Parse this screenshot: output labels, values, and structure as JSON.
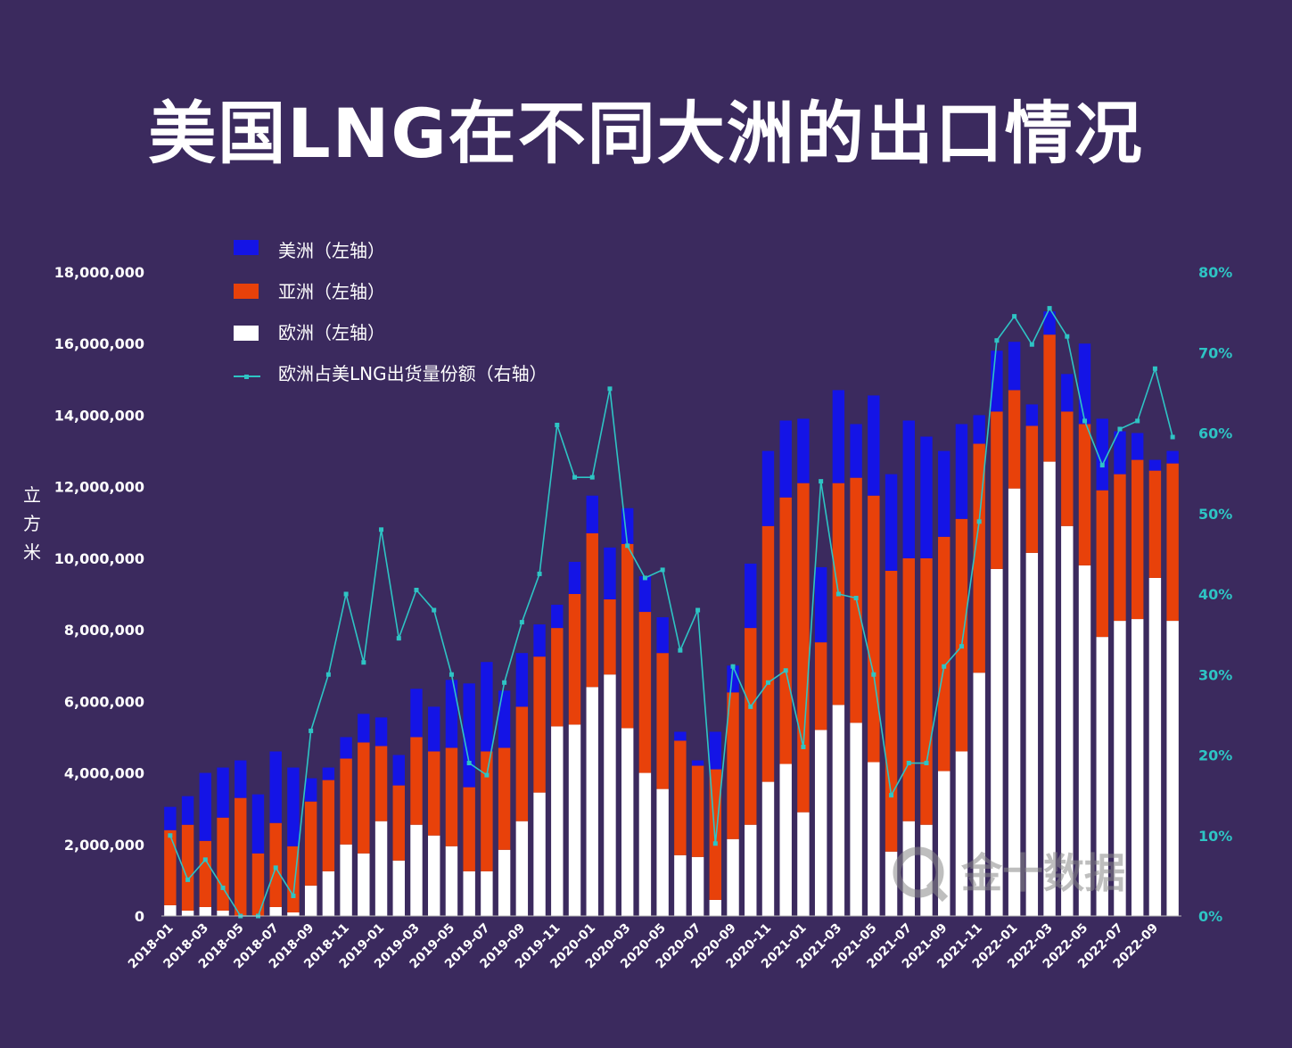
{
  "title": "美国LNG在不同大洲的出口情况",
  "watermark": "金十数据",
  "colors": {
    "background": "#3b2a5e",
    "americas": "#1414e6",
    "asia": "#e8410a",
    "europe": "#ffffff",
    "share_line": "#2ec4c4"
  },
  "chart_data": {
    "type": "bar",
    "stacked": true,
    "ylabel": "立方米",
    "ylim": [
      0,
      18000000
    ],
    "y_ticks": [
      "0",
      "2,000,000",
      "4,000,000",
      "6,000,000",
      "8,000,000",
      "10,000,000",
      "12,000,000",
      "14,000,000",
      "16,000,000",
      "18,000,000"
    ],
    "y2lim": [
      0,
      0.8
    ],
    "y2_ticks": [
      "0%",
      "10%",
      "20%",
      "30%",
      "40%",
      "50%",
      "60%",
      "70%",
      "80%"
    ],
    "x_tick_labels": [
      "2018-01",
      "2018-03",
      "2018-05",
      "2018-07",
      "2018-09",
      "2018-11",
      "2019-01",
      "2019-03",
      "2019-05",
      "2019-07",
      "2019-09",
      "2019-11",
      "2020-01",
      "2020-03",
      "2020-05",
      "2020-07",
      "2020-09",
      "2020-11",
      "2021-01",
      "2021-03",
      "2021-05",
      "2021-07",
      "2021-09",
      "2021-11",
      "2022-01",
      "2022-03",
      "2022-05",
      "2022-07",
      "2022-09"
    ],
    "categories": [
      "2018-01",
      "2018-02",
      "2018-03",
      "2018-04",
      "2018-05",
      "2018-06",
      "2018-07",
      "2018-08",
      "2018-09",
      "2018-10",
      "2018-11",
      "2018-12",
      "2019-01",
      "2019-02",
      "2019-03",
      "2019-04",
      "2019-05",
      "2019-06",
      "2019-07",
      "2019-08",
      "2019-09",
      "2019-10",
      "2019-11",
      "2019-12",
      "2020-01",
      "2020-02",
      "2020-03",
      "2020-04",
      "2020-05",
      "2020-06",
      "2020-07",
      "2020-08",
      "2020-09",
      "2020-10",
      "2020-11",
      "2020-12",
      "2021-01",
      "2021-02",
      "2021-03",
      "2021-04",
      "2021-05",
      "2021-06",
      "2021-07",
      "2021-08",
      "2021-09",
      "2021-10",
      "2021-11",
      "2021-12",
      "2022-01",
      "2022-02",
      "2022-03",
      "2022-04",
      "2022-05",
      "2022-06",
      "2022-07",
      "2022-08",
      "2022-09",
      "2022-10"
    ],
    "legend": [
      "美洲（左轴）",
      "亚洲（左轴）",
      "欧洲（左轴）",
      "欧洲占美LNG出货量份额（右轴）"
    ],
    "legend_placement": "top-left",
    "grid": false,
    "series": [
      {
        "name": "欧洲（左轴）",
        "axis": "left",
        "values": [
          300000,
          150000,
          250000,
          150000,
          0,
          0,
          250000,
          100000,
          850000,
          1250000,
          2000000,
          1750000,
          2650000,
          1550000,
          2550000,
          2250000,
          1950000,
          1250000,
          1250000,
          1850000,
          2650000,
          3450000,
          5300000,
          5350000,
          6400000,
          6750000,
          5250000,
          4000000,
          3550000,
          1700000,
          1650000,
          450000,
          2150000,
          2550000,
          3750000,
          4250000,
          2900000,
          5200000,
          5900000,
          5400000,
          4300000,
          1800000,
          2650000,
          2550000,
          4050000,
          4600000,
          6800000,
          9700000,
          11950000,
          10150000,
          12700000,
          10900000,
          9800000,
          7800000,
          8250000,
          8300000,
          9450000,
          8250000
        ]
      },
      {
        "name": "亚洲（左轴）",
        "axis": "left",
        "values": [
          2100000,
          2400000,
          1850000,
          2600000,
          3300000,
          1750000,
          2350000,
          1850000,
          2350000,
          2550000,
          2400000,
          3100000,
          2100000,
          2100000,
          2450000,
          2350000,
          2750000,
          2350000,
          3350000,
          2850000,
          3200000,
          3800000,
          2750000,
          3650000,
          4300000,
          2100000,
          5150000,
          4500000,
          3800000,
          3200000,
          2550000,
          3650000,
          4100000,
          5500000,
          7150000,
          7450000,
          9200000,
          2450000,
          6200000,
          6850000,
          7450000,
          7850000,
          7350000,
          7450000,
          6550000,
          6500000,
          6400000,
          4400000,
          2750000,
          3550000,
          3550000,
          3200000,
          3950000,
          4100000,
          4100000,
          4450000,
          3000000,
          4400000
        ]
      },
      {
        "name": "美洲（左轴）",
        "axis": "left",
        "values": [
          650000,
          800000,
          1900000,
          1400000,
          1050000,
          1650000,
          2000000,
          2200000,
          650000,
          350000,
          600000,
          800000,
          800000,
          850000,
          1350000,
          1250000,
          1900000,
          2900000,
          2500000,
          1600000,
          1500000,
          900000,
          650000,
          900000,
          1050000,
          1450000,
          1000000,
          1000000,
          1000000,
          250000,
          150000,
          1050000,
          750000,
          1800000,
          2100000,
          2150000,
          1800000,
          2100000,
          2600000,
          1500000,
          2800000,
          2700000,
          3850000,
          3400000,
          2400000,
          2650000,
          800000,
          1700000,
          1350000,
          600000,
          650000,
          1050000,
          2250000,
          2000000,
          1200000,
          750000,
          300000,
          350000
        ]
      },
      {
        "name": "欧洲占美LNG出货量份额（右轴）",
        "axis": "right",
        "type": "line",
        "values": [
          0.1,
          0.045,
          0.07,
          0.035,
          0.0,
          0.0,
          0.06,
          0.025,
          0.23,
          0.3,
          0.4,
          0.315,
          0.48,
          0.345,
          0.405,
          0.38,
          0.3,
          0.19,
          0.175,
          0.29,
          0.365,
          0.425,
          0.61,
          0.545,
          0.545,
          0.655,
          0.46,
          0.42,
          0.43,
          0.33,
          0.38,
          0.09,
          0.31,
          0.26,
          0.29,
          0.305,
          0.21,
          0.54,
          0.4,
          0.395,
          0.3,
          0.15,
          0.19,
          0.19,
          0.31,
          0.335,
          0.49,
          0.715,
          0.745,
          0.71,
          0.755,
          0.72,
          0.615,
          0.56,
          0.605,
          0.615,
          0.68,
          0.595
        ]
      }
    ]
  }
}
